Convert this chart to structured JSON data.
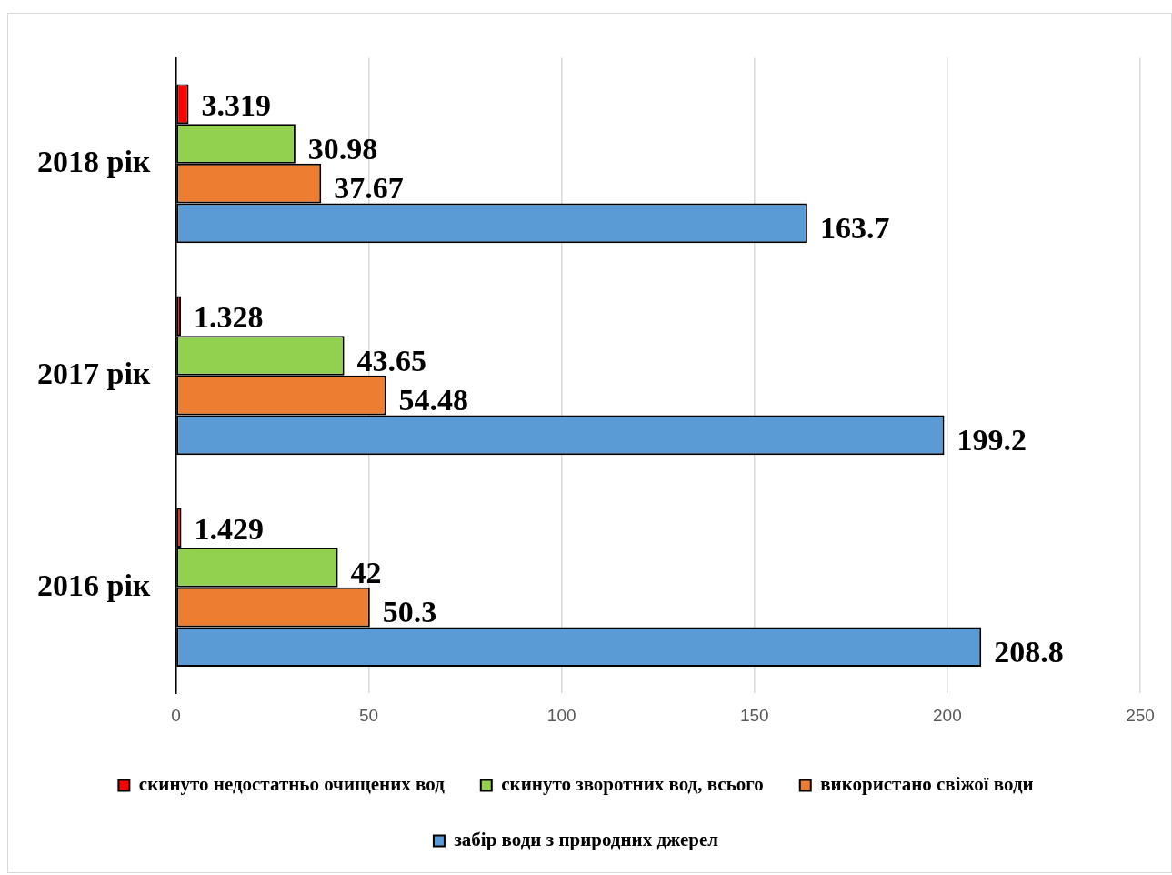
{
  "chart_data": {
    "type": "bar",
    "orientation": "horizontal",
    "categories": [
      "2018 рік",
      "2017 рік",
      "2016 рік"
    ],
    "series": [
      {
        "name": "скинуто недостатньо очищених вод",
        "color": "#ff0000",
        "values": [
          3.319,
          1.328,
          1.429
        ]
      },
      {
        "name": "скинуто зворотних вод, всього",
        "color": "#92d050",
        "values": [
          30.98,
          43.65,
          42
        ]
      },
      {
        "name": "використано свіжої води",
        "color": "#ed7d31",
        "values": [
          37.67,
          54.48,
          50.3
        ]
      },
      {
        "name": "забір води з природних джерел",
        "color": "#5b9bd5",
        "values": [
          163.7,
          199.2,
          208.8
        ]
      }
    ],
    "xlim": [
      0,
      250
    ],
    "xticks": [
      0,
      50,
      100,
      150,
      200,
      250
    ],
    "grid": "x",
    "legend": "bottom",
    "data_labels": true
  }
}
